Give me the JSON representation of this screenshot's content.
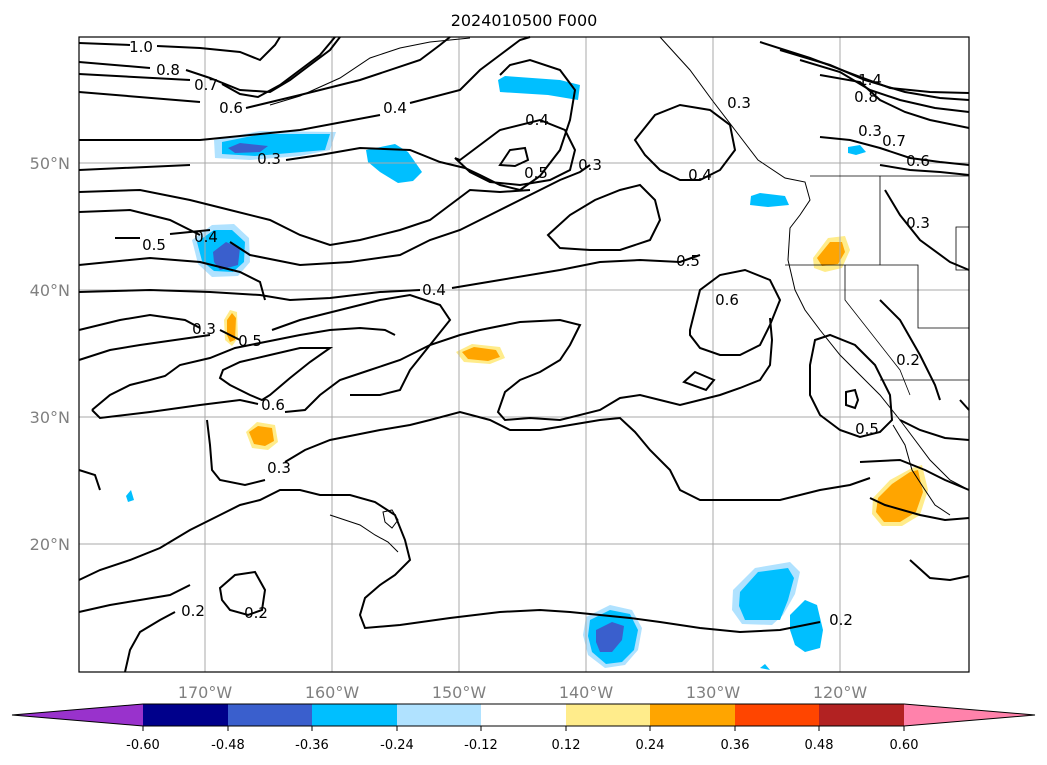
{
  "title": "2024010500 F000",
  "lat_labels": [
    "50°N",
    "40°N",
    "30°N",
    "20°N"
  ],
  "lon_labels": [
    "170°W",
    "160°W",
    "150°W",
    "140°W",
    "130°W",
    "120°W"
  ],
  "colorbar": {
    "labels": [
      "-0.60",
      "-0.48",
      "-0.36",
      "-0.24",
      "-0.12",
      "0.12",
      "0.24",
      "0.36",
      "0.48",
      "0.60"
    ],
    "colors": [
      "#9932cc",
      "#00008b",
      "#3a5fcd",
      "#00bfff",
      "#b0e2ff",
      "#ffffff",
      "#ffec8b",
      "#ffa500",
      "#ff4500",
      "#b22222",
      "#ff82ab"
    ]
  },
  "contour_labels": [
    "1.0",
    "0.8",
    "0.7",
    "0.6",
    "0.4",
    "0.3",
    "0.4",
    "0.5",
    "0.3",
    "0.4",
    "0.3",
    "1.4",
    "0.8",
    "0.3",
    "0.7",
    "0.6",
    "0.5",
    "0.4",
    "0.5",
    "0.6",
    "0.4",
    "0.3",
    "0.5",
    "0.6",
    "0.3",
    "0.5",
    "0.3",
    "0.2",
    "0.2",
    "0.2",
    "0.2"
  ]
}
